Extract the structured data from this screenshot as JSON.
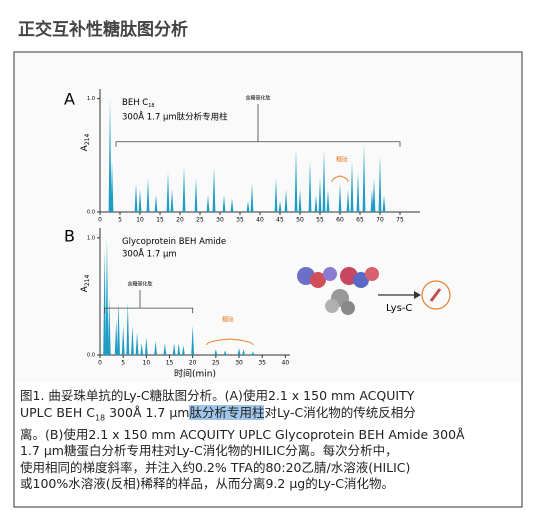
{
  "title": "正交互补性糖肽图分析",
  "chart_data": [
    {
      "type": "chromatogram",
      "panel": "A",
      "column_name": "BEH C",
      "column_sub": "18",
      "column_spec": "300Å 1.7 µm肽分析专用柱",
      "ylabel": "A",
      "ylabel_sub": "214",
      "bracket_label": "含糖基化肽",
      "highlight_label": "糖肽",
      "color": "#1e9cc4",
      "x": [
        2.5,
        3,
        9,
        10,
        12,
        14,
        17,
        18,
        21,
        24,
        27,
        28.5,
        31,
        33,
        37,
        38,
        44,
        45,
        46.5,
        49,
        50,
        52.5,
        54,
        55,
        56,
        57,
        60,
        62,
        63,
        64.5,
        66,
        68,
        68.5,
        70,
        71
      ],
      "values": [
        1.0,
        0.45,
        0.25,
        0.2,
        0.3,
        0.15,
        0.35,
        0.2,
        0.4,
        0.3,
        0.15,
        0.4,
        0.15,
        0.12,
        0.1,
        0.25,
        0.3,
        0.1,
        0.2,
        0.55,
        0.2,
        0.45,
        0.15,
        0.3,
        0.55,
        0.2,
        0.25,
        0.2,
        0.45,
        0.35,
        0.6,
        0.2,
        0.3,
        0.5,
        0.15
      ],
      "xlim": [
        0,
        80
      ],
      "ylim": [
        0,
        1.05
      ],
      "xticks": [
        0,
        5,
        10,
        15,
        20,
        25,
        30,
        35,
        40,
        45,
        50,
        55,
        60,
        65,
        70,
        75
      ],
      "yticks": [
        {
          "value": 0,
          "label": "0.0"
        },
        {
          "value": 1,
          "label": "1.0"
        }
      ]
    },
    {
      "type": "chromatogram",
      "panel": "B",
      "column_name": "Glycoprotein BEH Amide",
      "column_spec": "300Å 1.7 µm",
      "ylabel": "A",
      "ylabel_sub": "214",
      "bracket_label": "含糖基化肽",
      "highlight_label": "糖肽",
      "xlabel": "时间(min)",
      "color": "#1e9cc4",
      "enzyme": "Lys-C",
      "x": [
        1,
        1.5,
        2,
        3.5,
        4,
        5,
        6,
        7,
        8,
        9,
        10,
        12,
        14,
        16,
        17,
        18,
        20,
        25,
        27,
        30,
        31,
        33
      ],
      "values": [
        0.9,
        1.0,
        0.5,
        0.3,
        0.45,
        0.25,
        0.45,
        0.25,
        0.2,
        0.1,
        0.15,
        0.12,
        0.1,
        0.1,
        0.1,
        0.08,
        0.25,
        0.05,
        0.04,
        0.06,
        0.05,
        0.03
      ],
      "xlim": [
        0,
        41
      ],
      "ylim": [
        0,
        1.05
      ],
      "xticks": [
        0,
        5,
        10,
        15,
        20,
        25,
        30,
        35,
        40
      ],
      "yticks": [
        {
          "value": 0,
          "label": "0.0"
        },
        {
          "value": 1,
          "label": "1.0"
        }
      ]
    }
  ],
  "caption": {
    "line1": "图1. 曲妥珠单抗的Ly-C糖肽图分析。(A)使用2.1 x 150 mm ACQUITY",
    "line2a": "UPLC BEH C",
    "line2sub": "18",
    "line2b": " 300Å 1.7 µm",
    "line2hl": "肽分析专用柱",
    "line2c": "对Ly-C消化物的传统反相分",
    "line3": "离。(B)使用2.1 x 150 mm ACQUITY UPLC Glycoprotein BEH Amide 300Å",
    "line4": "1.7 µm糖蛋白分析专用柱对Ly-C消化物的HILIC分离。每次分析中，",
    "line5": "使用相同的梯度斜率，并注入约0.2% TFA的80:20乙腈/水溶液(HILIC)",
    "line6": "或100%水溶液(反相)稀释的样品，从而分离9.2 µg的Ly-C消化物。"
  }
}
